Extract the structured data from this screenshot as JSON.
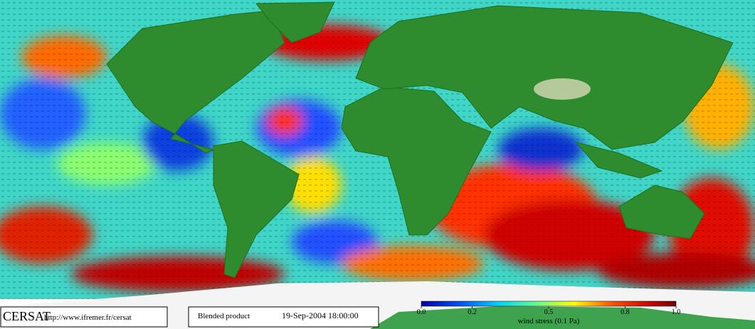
{
  "footer": {
    "logo": "CERSAT",
    "url": "http://www.ifremer.fr/cersat",
    "product": "Blended product",
    "datetime": "19-Sep-2004 18:00:00"
  },
  "colorbar": {
    "title": "wind stress (0.1 Pa)",
    "ticks": [
      {
        "value": 0,
        "label": "0.0"
      },
      0.2,
      0.5,
      0.8,
      {
        "value": 1,
        "label": "1.0"
      }
    ]
  }
}
